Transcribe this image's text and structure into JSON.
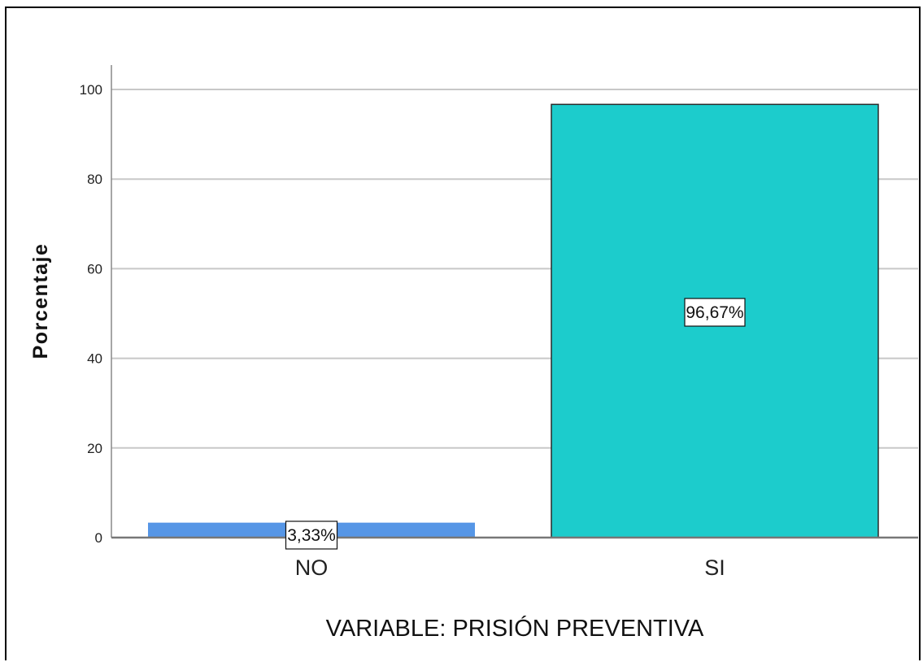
{
  "chart_data": {
    "type": "bar",
    "xlabel": "VARIABLE: PRISIÓN PREVENTIVA",
    "ylabel": "Porcentaje",
    "ylim": [
      0,
      100
    ],
    "yticks": [
      "0",
      "20",
      "40",
      "60",
      "80",
      "100"
    ],
    "grid": true,
    "legend": "none",
    "categories": [
      "NO",
      "SI"
    ],
    "values": [
      3.33,
      96.67
    ],
    "data_labels": [
      "3,33%",
      "96,67%"
    ],
    "bar_colors": [
      "#5696e6",
      "#1ccccc"
    ],
    "bar_outline": "#2a2a2a",
    "grid_color": "#c8c8c8"
  }
}
